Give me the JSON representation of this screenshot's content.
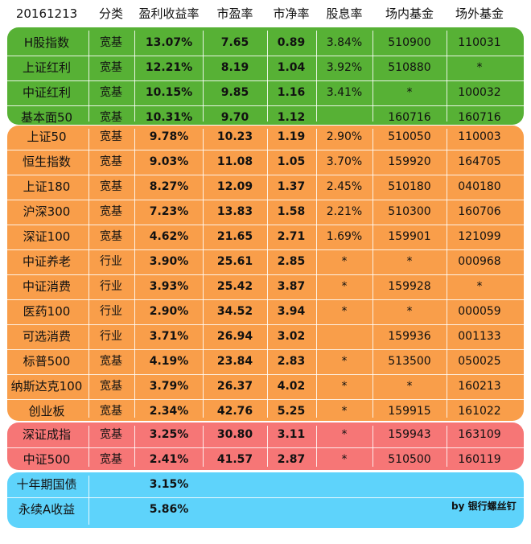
{
  "header": [
    "20161213",
    "分类",
    "盈利收益率",
    "市盈率",
    "市净率",
    "股息率",
    "场内基金",
    "场外基金"
  ],
  "groups": [
    {
      "color": "#57b135",
      "rows": [
        [
          "H股指数",
          "宽基",
          "13.07%",
          "7.65",
          "0.89",
          "3.84%",
          "510900",
          "110031"
        ],
        [
          "上证红利",
          "宽基",
          "12.21%",
          "8.19",
          "1.04",
          "3.92%",
          "510880",
          "*"
        ],
        [
          "中证红利",
          "宽基",
          "10.15%",
          "9.85",
          "1.16",
          "3.41%",
          "*",
          "100032"
        ],
        [
          "基本面50",
          "宽基",
          "10.31%",
          "9.70",
          "1.12",
          "",
          "160716",
          "160716"
        ]
      ]
    },
    {
      "color": "#f99e4a",
      "rows": [
        [
          "上证50",
          "宽基",
          "9.78%",
          "10.23",
          "1.19",
          "2.90%",
          "510050",
          "110003"
        ],
        [
          "恒生指数",
          "宽基",
          "9.03%",
          "11.08",
          "1.05",
          "3.70%",
          "159920",
          "164705"
        ],
        [
          "上证180",
          "宽基",
          "8.27%",
          "12.09",
          "1.37",
          "2.45%",
          "510180",
          "040180"
        ],
        [
          "沪深300",
          "宽基",
          "7.23%",
          "13.83",
          "1.58",
          "2.21%",
          "510300",
          "160706"
        ],
        [
          "深证100",
          "宽基",
          "4.62%",
          "21.65",
          "2.71",
          "1.69%",
          "159901",
          "121099"
        ],
        [
          "中证养老",
          "行业",
          "3.90%",
          "25.61",
          "2.85",
          "*",
          "*",
          "000968"
        ],
        [
          "中证消费",
          "行业",
          "3.93%",
          "25.42",
          "3.87",
          "*",
          "159928",
          "*"
        ],
        [
          "医药100",
          "行业",
          "2.90%",
          "34.52",
          "3.94",
          "*",
          "*",
          "000059"
        ],
        [
          "可选消费",
          "行业",
          "3.71%",
          "26.94",
          "3.02",
          "",
          "159936",
          "001133"
        ],
        [
          "标普500",
          "宽基",
          "4.19%",
          "23.84",
          "2.83",
          "*",
          "513500",
          "050025"
        ],
        [
          "纳斯达克100",
          "宽基",
          "3.79%",
          "26.37",
          "4.02",
          "*",
          "*",
          "160213"
        ],
        [
          "创业板",
          "宽基",
          "2.34%",
          "42.76",
          "5.25",
          "*",
          "159915",
          "161022"
        ]
      ]
    },
    {
      "color": "#f67676",
      "rows": [
        [
          "深证成指",
          "宽基",
          "3.25%",
          "30.80",
          "3.11",
          "*",
          "159943",
          "163109"
        ],
        [
          "中证500",
          "宽基",
          "2.41%",
          "41.57",
          "2.87",
          "*",
          "510500",
          "160119"
        ]
      ]
    },
    {
      "color": "#5ed3fb",
      "rows": [
        [
          "十年期国债",
          "",
          "3.15%",
          "",
          "",
          "",
          "",
          ""
        ],
        [
          "永续A收益",
          "",
          "5.86%",
          "",
          "",
          "",
          "",
          ""
        ]
      ]
    }
  ],
  "signature": "by 银行螺丝钉"
}
